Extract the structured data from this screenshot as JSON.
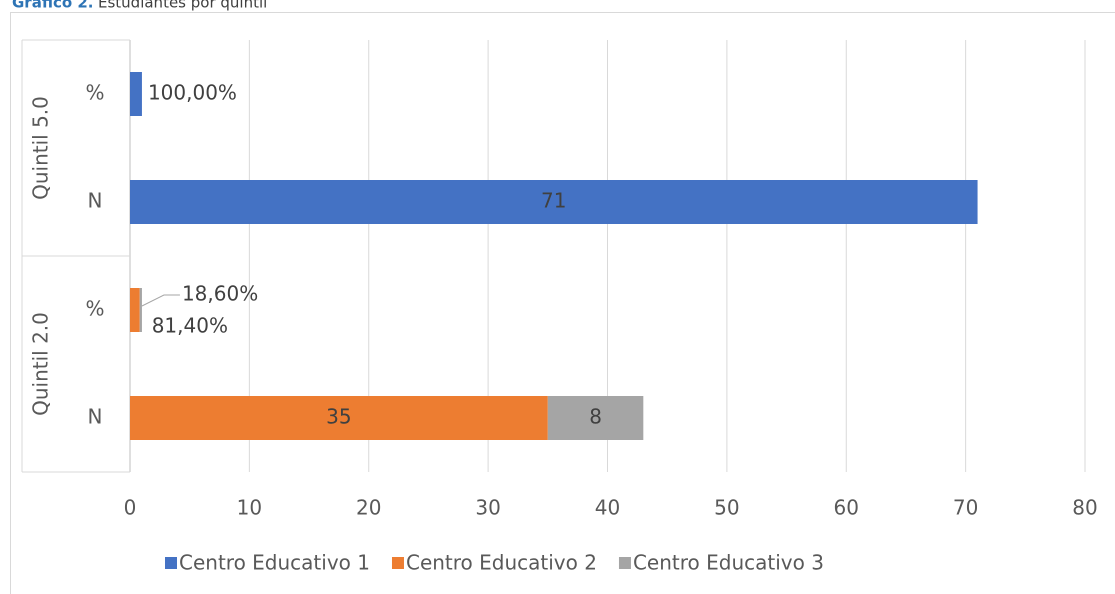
{
  "chart_data": {
    "type": "bar",
    "stacked": true,
    "orientation": "horizontal",
    "title_label": "Gráfico 2.",
    "title": "Estudiantes por quintil",
    "category_groups": [
      {
        "name": "Quintil 5.0",
        "categories": [
          "%",
          "N"
        ]
      },
      {
        "name": "Quintil 2.0",
        "categories": [
          "%",
          "N"
        ]
      }
    ],
    "series": [
      {
        "name": "Centro Educativo 1",
        "color": "#4472c4",
        "values": [
          1,
          71,
          null,
          null
        ],
        "value_labels": [
          "100,00%",
          null,
          null,
          null
        ]
      },
      {
        "name": "Centro Educativo 2",
        "color": "#ed7d31",
        "values": [
          null,
          null,
          0.814,
          35
        ],
        "value_labels": [
          null,
          null,
          "81,40%",
          null
        ]
      },
      {
        "name": "Centro Educativo 3",
        "color": "#a5a5a5",
        "values": [
          null,
          null,
          0.186,
          8
        ],
        "value_labels": [
          null,
          null,
          "18,60%",
          null
        ]
      }
    ],
    "xlim": [
      0,
      80
    ],
    "xticks": [
      0,
      10,
      20,
      30,
      40,
      50,
      60,
      70,
      80
    ],
    "grid": true,
    "legend": "bottom"
  }
}
